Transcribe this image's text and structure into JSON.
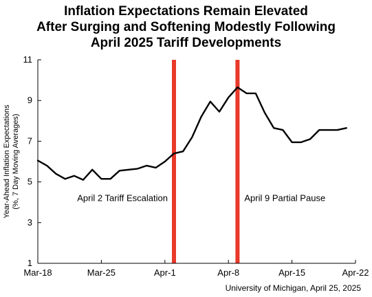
{
  "chart_data": {
    "type": "line",
    "title_lines": [
      "Inflation Expectations Remain Elevated",
      "After Surging and Softening Modestly Following",
      "April 2025 Tariff Developments"
    ],
    "ylabel_lines": [
      "Year-Ahead Inflation Expectations",
      "(%, 7 Day Moving Averages)"
    ],
    "xlabel": "",
    "source": "University of Michigan, April 25, 2025",
    "ylim": [
      1,
      11
    ],
    "yticks": [
      1,
      3,
      5,
      7,
      9,
      11
    ],
    "x_range": [
      "Mar-18",
      "Apr-22"
    ],
    "xticks": [
      "Mar-18",
      "Mar-25",
      "Apr-1",
      "Apr-8",
      "Apr-15",
      "Apr-22"
    ],
    "grid": false,
    "series": [
      {
        "color": "#000000",
        "x": [
          "Mar-18",
          "Mar-19",
          "Mar-20",
          "Mar-21",
          "Mar-22",
          "Mar-23",
          "Mar-24",
          "Mar-25",
          "Mar-26",
          "Mar-27",
          "Mar-28",
          "Mar-29",
          "Mar-30",
          "Mar-31",
          "Apr-1",
          "Apr-2",
          "Apr-3",
          "Apr-4",
          "Apr-5",
          "Apr-6",
          "Apr-7",
          "Apr-8",
          "Apr-9",
          "Apr-10",
          "Apr-11",
          "Apr-12",
          "Apr-13",
          "Apr-14",
          "Apr-15",
          "Apr-16",
          "Apr-17",
          "Apr-18",
          "Apr-19",
          "Apr-20",
          "Apr-21"
        ],
        "values": [
          6.05,
          5.8,
          5.4,
          5.15,
          5.3,
          5.1,
          5.6,
          5.15,
          5.15,
          5.55,
          5.6,
          5.65,
          5.8,
          5.7,
          6.0,
          6.4,
          6.5,
          7.2,
          8.2,
          8.95,
          8.45,
          9.15,
          9.65,
          9.35,
          9.35,
          8.4,
          7.65,
          7.55,
          6.95,
          6.95,
          7.1,
          7.55,
          7.55,
          7.55,
          7.65
        ]
      }
    ],
    "vlines": [
      {
        "x": "Apr-2",
        "color": "#e8392a",
        "label": "April 2 Tariff Escalation"
      },
      {
        "x": "Apr-9",
        "color": "#e8392a",
        "label": "April 9 Partial Pause"
      }
    ]
  }
}
